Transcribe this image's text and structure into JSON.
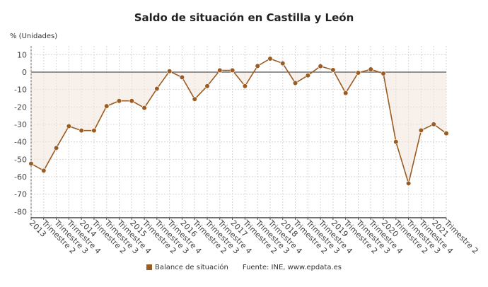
{
  "chart_data": {
    "type": "line",
    "title": "Saldo de situación en Castilla y León",
    "ylabel": "% (Unidades)",
    "xlabel": "",
    "ylim": [
      -83.5,
      15
    ],
    "yticks": [
      10,
      0,
      -10,
      -20,
      -30,
      -40,
      -50,
      -60,
      -70,
      -80
    ],
    "grid": true,
    "legend_position": "bottom",
    "categories": [
      "2013",
      "Trimestre 2",
      "Trimestre 3",
      "Trimestre 4",
      "2014",
      "Trimestre 2",
      "Trimestre 3",
      "Trimestre 4",
      "2015",
      "Trimestre 2",
      "Trimestre 3",
      "Trimestre 4",
      "2016",
      "Trimestre 2",
      "Trimestre 3",
      "Trimestre 4",
      "2017",
      "Trimestre 2",
      "Trimestre 3",
      "Trimestre 4",
      "2018",
      "Trimestre 2",
      "Trimestre 3",
      "Trimestre 4",
      "2019",
      "Trimestre 2",
      "Trimestre 3",
      "Trimestre 4",
      "2020",
      "Trimestre 2",
      "Trimestre 3",
      "Trimestre 4",
      "2021",
      "Trimestre 2"
    ],
    "series": [
      {
        "name": "Balance de situación",
        "color": "#9a5c22",
        "values": [
          -52.5,
          -56.5,
          -43.5,
          -31,
          -33.5,
          -33.5,
          -19.5,
          -16.5,
          -16.5,
          -20.5,
          -9.5,
          0.5,
          -3,
          -15.5,
          -8,
          1,
          1,
          -8,
          3.5,
          7.7,
          5,
          -6.3,
          -1.9,
          3.4,
          1.2,
          -12,
          -0.4,
          1.6,
          -0.8,
          -40,
          -63.8,
          -33.4,
          -29.9,
          -35.1
        ]
      }
    ],
    "source": "Fuente: INE, www.epdata.es"
  }
}
